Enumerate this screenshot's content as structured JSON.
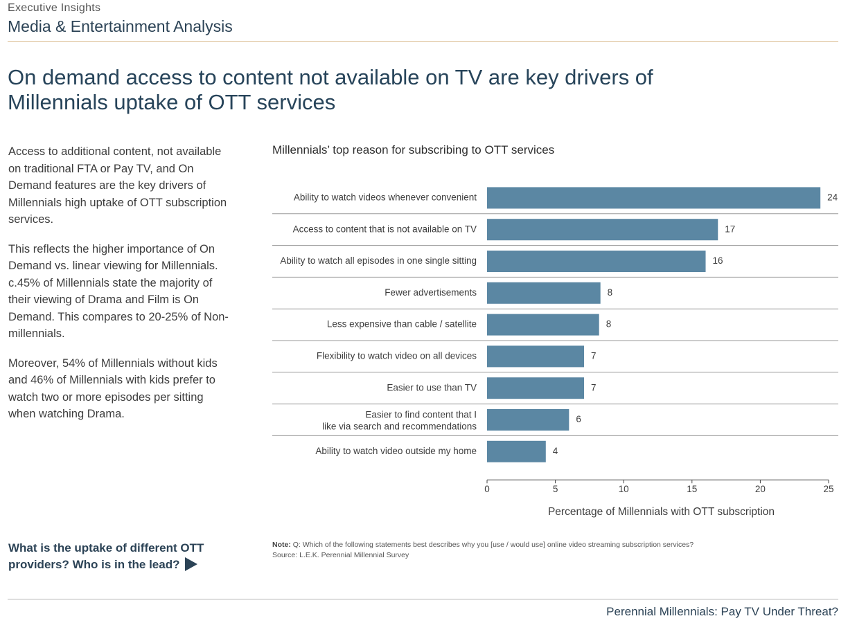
{
  "header": {
    "eyebrow": "Executive Insights",
    "subhead": "Media & Entertainment Analysis"
  },
  "page_title": "On demand access to content not available on TV are key drivers of Millennials uptake of OTT services",
  "body": {
    "paragraphs": [
      "Access to additional content, not available on traditional FTA or Pay TV, and  On Demand features  are the key drivers of Millennials high uptake of OTT subscription services.",
      "This reflects the higher importance of On Demand vs. linear viewing for Millennials.  c.45% of Millennials state the majority of their viewing of Drama and Film is On Demand. This compares to 20-25% of Non-millennials.",
      "Moreover, 54% of Millennials without kids and 46% of Millennials with kids prefer to watch two or more episodes per sitting when watching Drama."
    ]
  },
  "cta": {
    "label": "What is the uptake of different OTT providers? Who is in the lead?",
    "icon": "play-arrow-icon"
  },
  "chart_title": "Millennials’ top reason for subscribing to OTT services",
  "chart_data": {
    "type": "bar",
    "orientation": "horizontal",
    "categories": [
      "Ability to watch videos whenever convenient",
      "Access to content that is not available on TV",
      "Ability to watch all episodes in one single sitting",
      "Fewer advertisements",
      "Less expensive than cable / satellite",
      "Flexibility to watch video on all devices",
      "Easier to use than TV",
      "Easier to find content that I like via search and recommendations",
      "Ability to watch video outside my home"
    ],
    "values": [
      24,
      17,
      16,
      8,
      8,
      7,
      7,
      6,
      4
    ],
    "bar_values": [
      24.4,
      16.9,
      16.0,
      8.3,
      8.2,
      7.1,
      7.1,
      6.0,
      4.3
    ],
    "xlabel": "Percentage of Millennials with OTT subscription",
    "xlim": [
      0,
      25
    ],
    "xticks": [
      0,
      5,
      10,
      15,
      20,
      25
    ],
    "bar_color": "#5b87a3",
    "grid": false
  },
  "note": {
    "label": "Note:",
    "text": "Q: Which of the following statements best describes why you [use / would use] online video streaming subscription services?",
    "source": "Source: L.E.K. Perennial Millennial Survey"
  },
  "footer": "Perennial Millennials: Pay TV Under Threat?"
}
